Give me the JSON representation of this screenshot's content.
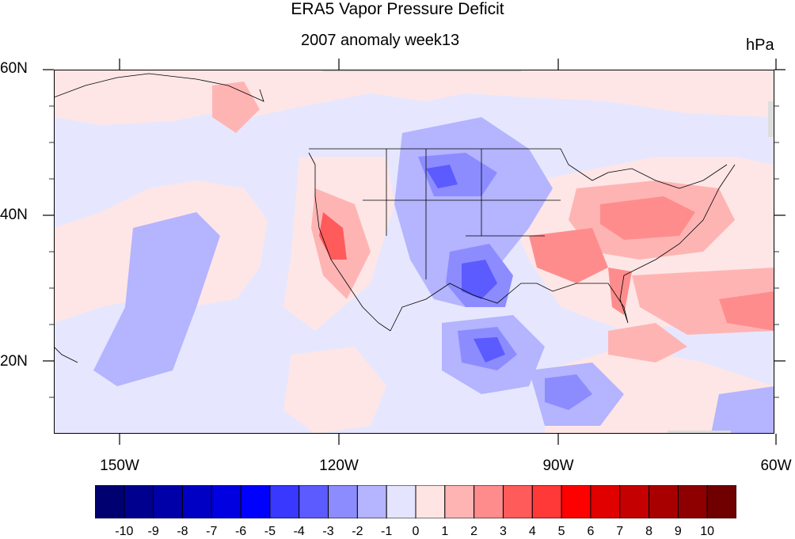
{
  "title": "ERA5 Vapor Pressure Deficit",
  "subtitle": "2007 anomaly week13",
  "units": "hPa",
  "lat_labels": [
    "60N",
    "40N",
    "20N"
  ],
  "lon_labels": [
    "150W",
    "120W",
    "90W",
    "60W"
  ],
  "colorbar": {
    "labels": [
      "-10",
      "-9",
      "-8",
      "-7",
      "-6",
      "-5",
      "-4",
      "-3",
      "-2",
      "-1",
      "0",
      "1",
      "2",
      "3",
      "4",
      "5",
      "6",
      "7",
      "8",
      "9",
      "10"
    ],
    "colors": [
      "#000070",
      "#00008e",
      "#0000a8",
      "#0000c4",
      "#0000e0",
      "#0000ff",
      "#3838ff",
      "#5b5bff",
      "#8c8cff",
      "#b4b4ff",
      "#e4e4ff",
      "#ffe4e4",
      "#ffb4b4",
      "#ff8c8c",
      "#ff5b5b",
      "#ff3838",
      "#ff0000",
      "#e00000",
      "#c40000",
      "#a80000",
      "#8e0000",
      "#700000"
    ]
  },
  "colors": {
    "neutral_blue": "#e6e7fe",
    "neutral_red": "#fee6e6"
  }
}
